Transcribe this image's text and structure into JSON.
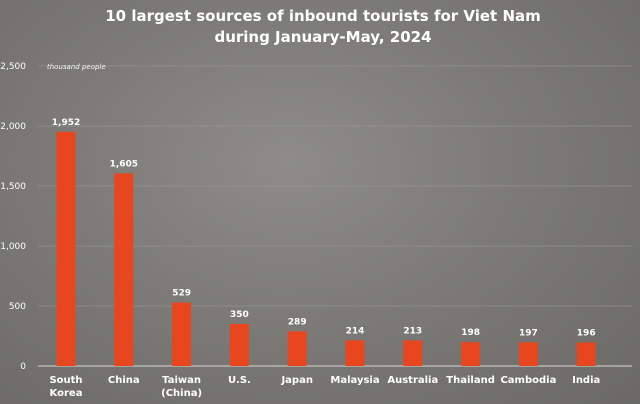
{
  "chart_data": {
    "type": "bar",
    "title": [
      "10 largest sources of  inbound tourists for Viet Nam",
      "during January-May, 2024"
    ],
    "unit_label": "thousand people",
    "categories": [
      [
        "South",
        "Korea"
      ],
      [
        "China"
      ],
      [
        "Taiwan",
        "(China)"
      ],
      [
        "U.S."
      ],
      [
        "Japan"
      ],
      [
        "Malaysia"
      ],
      [
        "Australia"
      ],
      [
        "Thailand"
      ],
      [
        "Cambodia"
      ],
      [
        "India"
      ]
    ],
    "values": [
      1952,
      1605,
      529,
      350,
      289,
      214,
      213,
      198,
      197,
      196
    ],
    "value_labels": [
      "1,952",
      "1,605",
      "529",
      "350",
      "289",
      "214",
      "213",
      "198",
      "197",
      "196"
    ],
    "yticks": [
      0,
      500,
      1000,
      1500,
      2000,
      2500
    ],
    "ytick_labels": [
      "0",
      "500",
      "1,000",
      "1,500",
      "2,000",
      "2,500"
    ],
    "ylim": [
      0,
      2500
    ],
    "grid": true,
    "legend": "none",
    "bar_color": "#e8461e"
  }
}
